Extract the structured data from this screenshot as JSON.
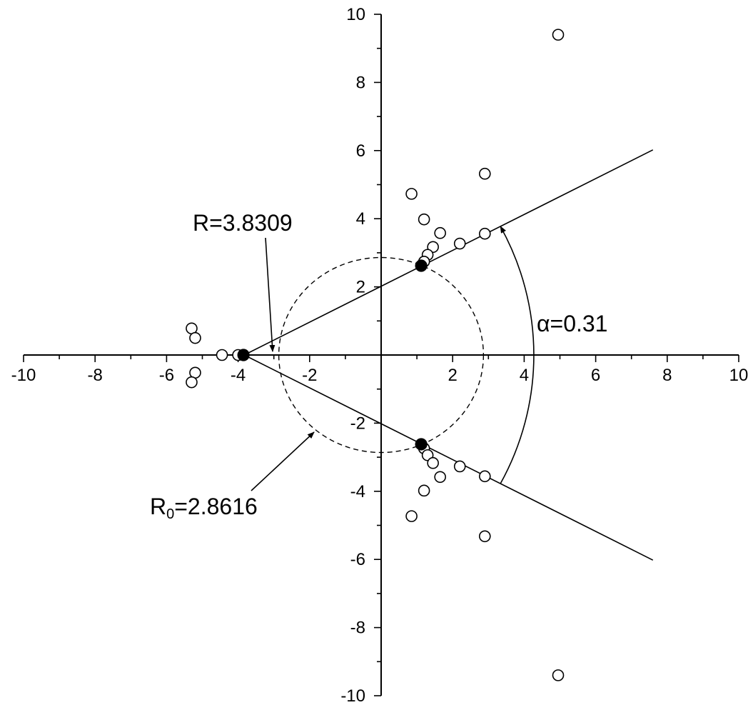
{
  "chart_data": {
    "type": "scatter",
    "title": "",
    "xlabel": "",
    "ylabel": "",
    "xlim": [
      -10,
      10
    ],
    "ylim": [
      -10,
      10
    ],
    "grid": false,
    "axes_through_origin": true,
    "x_ticks": [
      -10,
      -8,
      -6,
      -4,
      -2,
      2,
      4,
      6,
      8,
      10
    ],
    "x_tick_labels": [
      "-10",
      "-8",
      "-6",
      "-4",
      "-2",
      "2",
      "4",
      "6",
      "8",
      "10"
    ],
    "y_ticks": [
      10,
      8,
      6,
      4,
      2,
      -2,
      -4,
      -6,
      -8,
      -10
    ],
    "y_tick_labels": [
      "10",
      "8",
      "6",
      "4",
      "2",
      "-2",
      "-4",
      "-6",
      "-8",
      "-10"
    ],
    "open_points": [
      [
        4.95,
        9.4
      ],
      [
        2.9,
        5.32
      ],
      [
        0.85,
        4.73
      ],
      [
        1.2,
        3.98
      ],
      [
        1.65,
        3.58
      ],
      [
        2.9,
        3.56
      ],
      [
        2.2,
        3.27
      ],
      [
        1.45,
        3.17
      ],
      [
        1.3,
        2.94
      ],
      [
        1.2,
        2.74
      ],
      [
        -5.3,
        0.78
      ],
      [
        -5.2,
        0.5
      ],
      [
        -4.45,
        0.0
      ],
      [
        -4.0,
        0.0
      ],
      [
        -5.2,
        -0.52
      ],
      [
        -5.3,
        -0.8
      ],
      [
        1.2,
        -2.74
      ],
      [
        1.3,
        -2.94
      ],
      [
        1.45,
        -3.17
      ],
      [
        2.2,
        -3.27
      ],
      [
        2.9,
        -3.56
      ],
      [
        1.65,
        -3.58
      ],
      [
        1.2,
        -3.98
      ],
      [
        0.85,
        -4.73
      ],
      [
        2.9,
        -5.32
      ],
      [
        4.95,
        -9.4
      ]
    ],
    "filled_points": [
      [
        -3.85,
        0.0
      ],
      [
        1.12,
        2.62
      ],
      [
        1.12,
        -2.62
      ]
    ],
    "rays": [
      {
        "from": [
          -3.83,
          0.0
        ],
        "to": [
          7.6,
          6.02
        ]
      },
      {
        "from": [
          -3.83,
          0.0
        ],
        "to": [
          7.6,
          -6.02
        ]
      }
    ],
    "circle": {
      "center": [
        0,
        0
      ],
      "radius": 2.8616,
      "style": "dashed"
    },
    "angle_arc": {
      "center": [
        -3.83,
        0.0
      ],
      "radius": 8.1
    },
    "annotations": {
      "radius_label": "R=3.8309",
      "r0_label_main": "R",
      "r0_label_sub": "0",
      "r0_label_value": "=2.8616",
      "alpha_label_symbol": "α",
      "alpha_label_value": "=0.31"
    }
  }
}
